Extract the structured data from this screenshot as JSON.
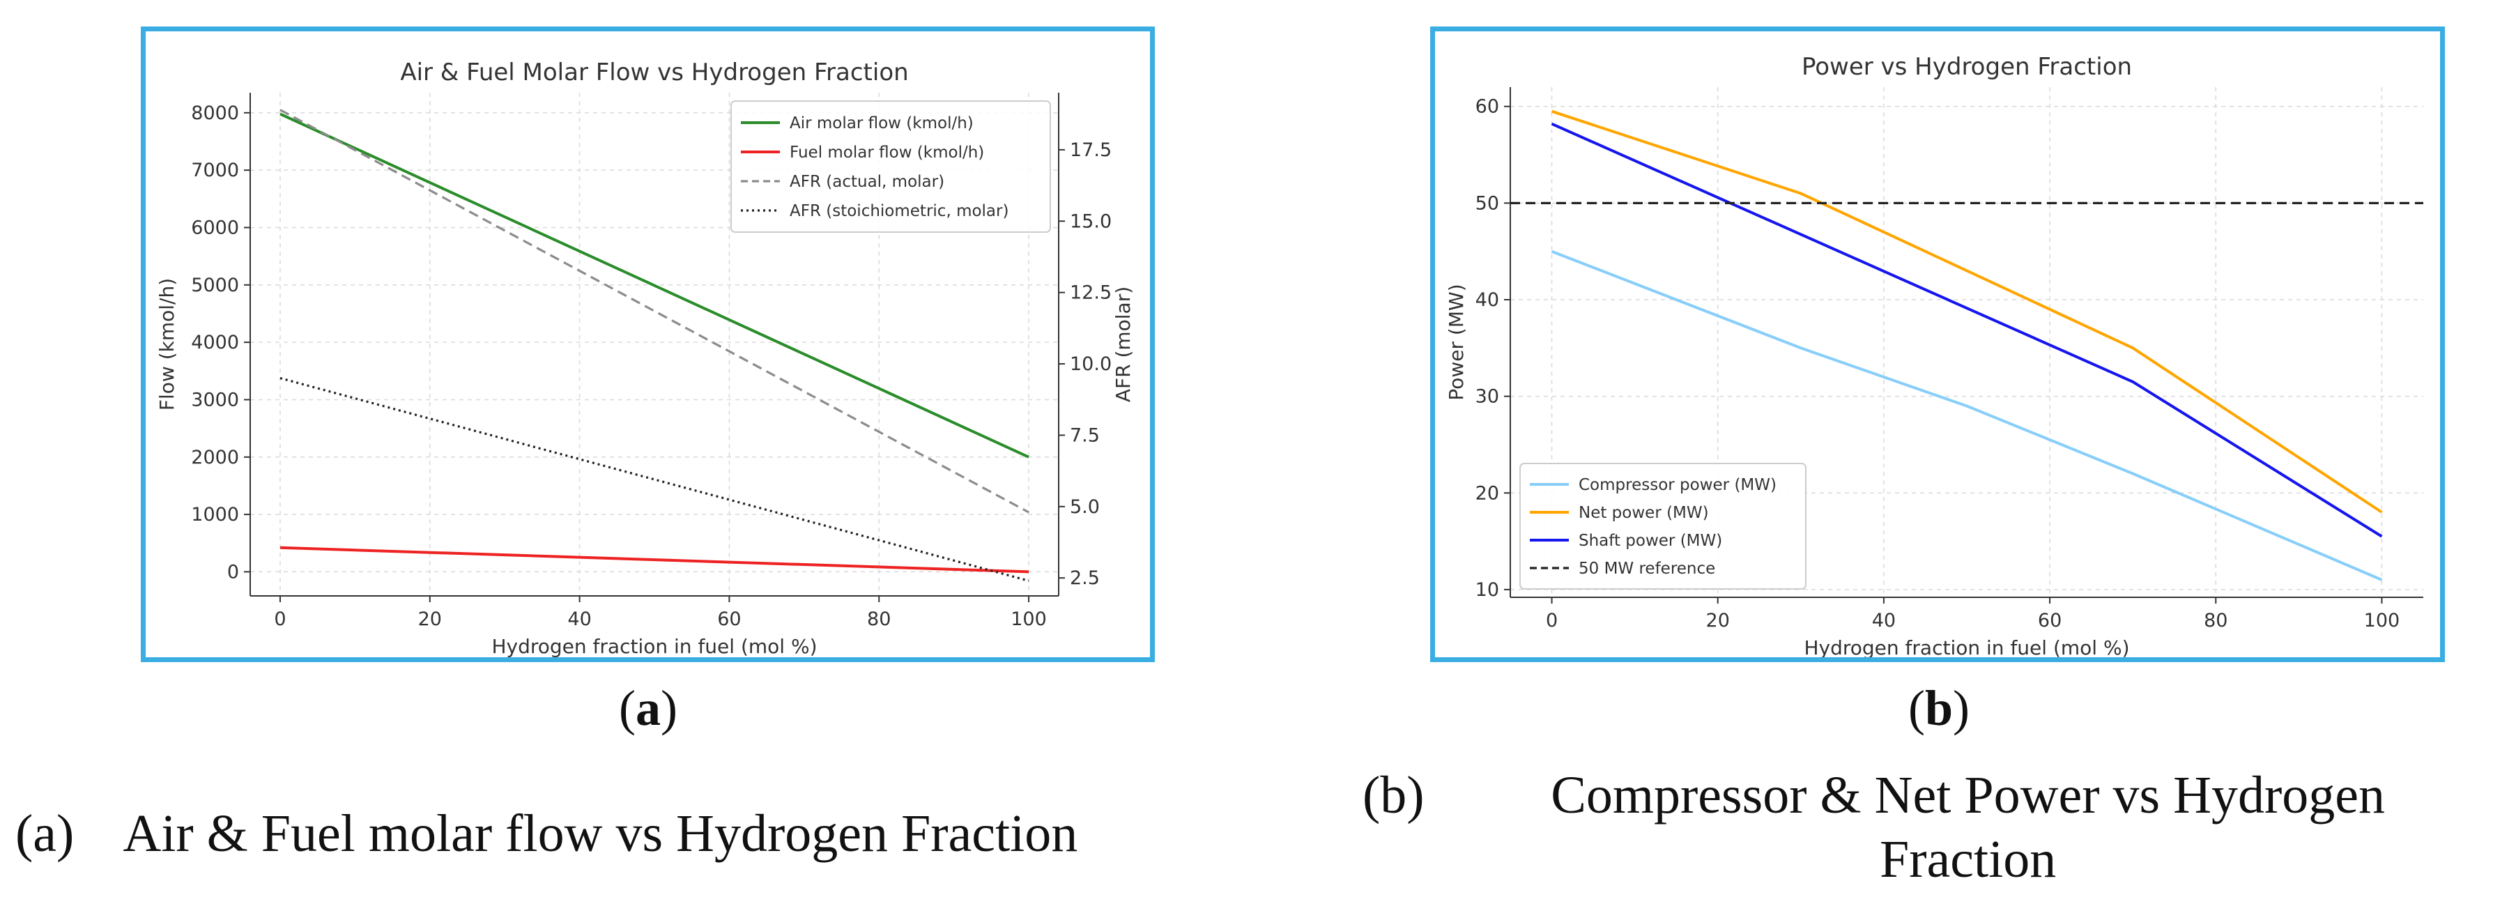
{
  "figures": [
    {
      "id": "a",
      "letter": "a",
      "caption_label": "(a)",
      "caption_text": "Air & Fuel molar flow vs Hydrogen Fraction",
      "chart_data": {
        "type": "line",
        "title": "Air & Fuel Molar Flow vs Hydrogen Fraction",
        "xlabel": "Hydrogen fraction in fuel (mol %)",
        "ylabel": "Flow (kmol/h)",
        "y2label": "AFR (molar)",
        "xlim": [
          -4,
          104
        ],
        "ylim": [
          -420,
          8350
        ],
        "y2lim": [
          1.87,
          19.5
        ],
        "xticks": [
          0,
          20,
          40,
          60,
          80,
          100
        ],
        "yticks": [
          0,
          1000,
          2000,
          3000,
          4000,
          5000,
          6000,
          7000,
          8000
        ],
        "y2ticks": [
          "2.5",
          "5.0",
          "7.5",
          "10.0",
          "12.5",
          "15.0",
          "17.5"
        ],
        "grid": true,
        "legend_position": "top-right",
        "series": [
          {
            "name": "Air molar flow (kmol/h)",
            "axis": "left",
            "color": "#2a8c2a",
            "dash": "solid",
            "x": [
              0,
              100
            ],
            "y": [
              7980,
              2000
            ]
          },
          {
            "name": "Fuel molar flow (kmol/h)",
            "axis": "left",
            "color": "#ee2222",
            "dash": "solid",
            "x": [
              0,
              100
            ],
            "y": [
              420,
              0
            ]
          },
          {
            "name": "AFR (actual, molar)",
            "axis": "right",
            "color": "#8c8c8c",
            "dash": "dashed",
            "x": [
              0,
              100
            ],
            "y": [
              18.9,
              4.8
            ]
          },
          {
            "name": "AFR (stoichiometric, molar)",
            "axis": "right",
            "color": "#222222",
            "dash": "dotted",
            "x": [
              0,
              100
            ],
            "y": [
              9.5,
              2.4
            ]
          }
        ]
      }
    },
    {
      "id": "b",
      "letter": "b",
      "caption_label": "(b)",
      "caption_text": "Compressor & Net Power vs Hydrogen Fraction",
      "chart_data": {
        "type": "line",
        "title": "Power vs Hydrogen Fraction",
        "xlabel": "Hydrogen fraction in fuel (mol %)",
        "ylabel": "Power (MW)",
        "xlim": [
          -5,
          105
        ],
        "ylim": [
          9.2,
          62
        ],
        "xticks": [
          0,
          20,
          40,
          60,
          80,
          100
        ],
        "yticks": [
          10,
          20,
          30,
          40,
          50,
          60
        ],
        "grid": true,
        "legend_position": "bottom-left",
        "series": [
          {
            "name": "Compressor power (MW)",
            "color": "#87cefa",
            "dash": "solid",
            "x": [
              0,
              30,
              50,
              70,
              100
            ],
            "y": [
              45,
              35,
              29,
              22,
              11
            ]
          },
          {
            "name": "Net power (MW)",
            "color": "#ffa500",
            "dash": "solid",
            "x": [
              0,
              30,
              70,
              100
            ],
            "y": [
              59.5,
              51,
              35,
              18
            ]
          },
          {
            "name": "Shaft power (MW)",
            "color": "#1515ee",
            "dash": "solid",
            "x": [
              0,
              70,
              100
            ],
            "y": [
              58.2,
              31.5,
              15.5
            ]
          },
          {
            "name": "50 MW reference",
            "color": "#222222",
            "dash": "dashed",
            "x": [
              -5,
              105
            ],
            "y": [
              50,
              50
            ]
          }
        ]
      }
    }
  ]
}
